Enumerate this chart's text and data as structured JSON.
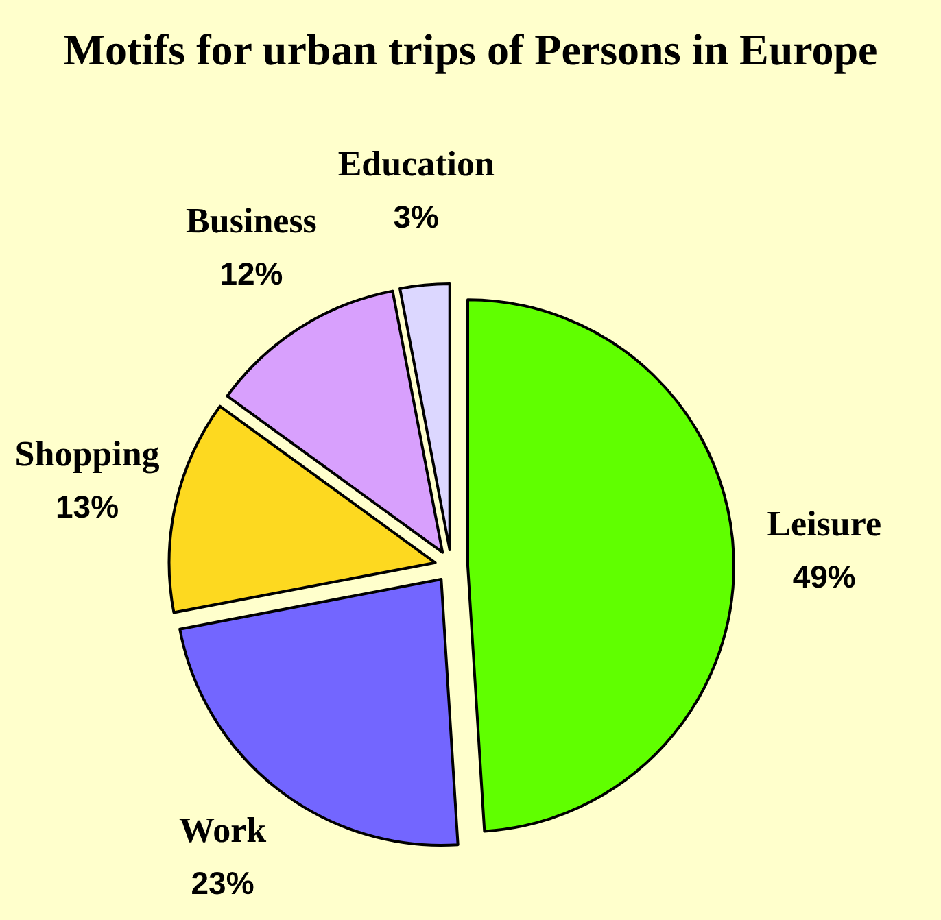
{
  "chart_data": {
    "type": "pie",
    "title": "Motifs for urban trips of Persons in Europe",
    "categories": [
      "Leisure",
      "Work",
      "Shopping",
      "Business",
      "Education"
    ],
    "values": [
      49,
      23,
      13,
      12,
      3
    ],
    "value_labels": [
      "49%",
      "23%",
      "13%",
      "12%",
      "3%"
    ],
    "colors": [
      "#60ff00",
      "#7366ff",
      "#fdd920",
      "#d8a0fd",
      "#dcd7ff"
    ]
  }
}
